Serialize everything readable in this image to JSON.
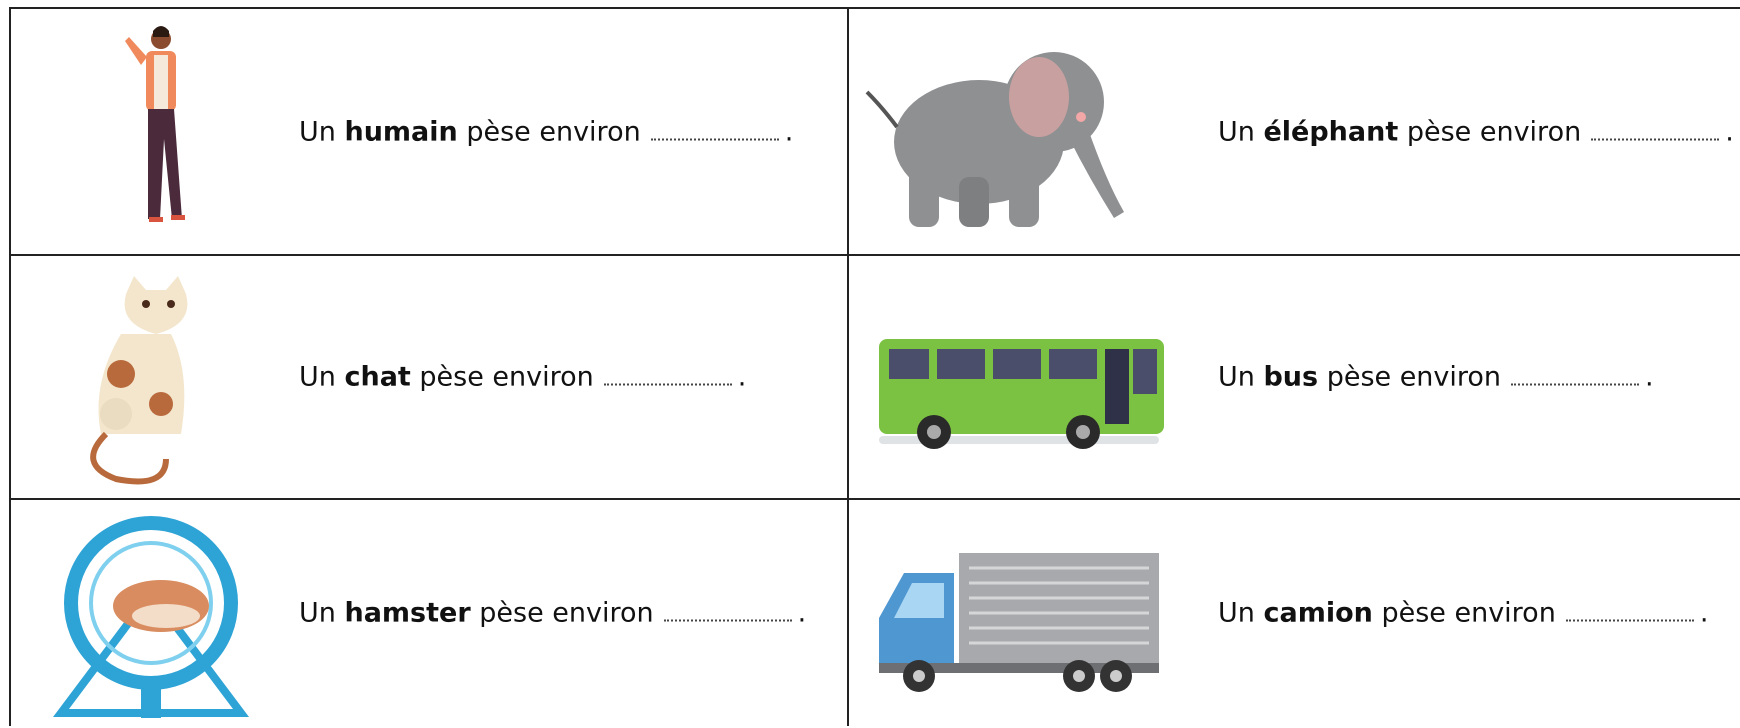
{
  "rows": [
    [
      {
        "prefix": "Un",
        "subject": "humain",
        "rest": "pèse environ",
        "end": "."
      },
      {
        "prefix": "Un",
        "subject": "éléphant",
        "rest": "pèse environ",
        "end": "."
      }
    ],
    [
      {
        "prefix": "Un",
        "subject": "chat",
        "rest": "pèse environ",
        "end": "."
      },
      {
        "prefix": "Un",
        "subject": "bus",
        "rest": "pèse environ",
        "end": "."
      }
    ],
    [
      {
        "prefix": "Un",
        "subject": "hamster",
        "rest": "pèse environ",
        "end": "."
      },
      {
        "prefix": "Un",
        "subject": "camion",
        "rest": "pèse environ",
        "end": "."
      }
    ]
  ]
}
